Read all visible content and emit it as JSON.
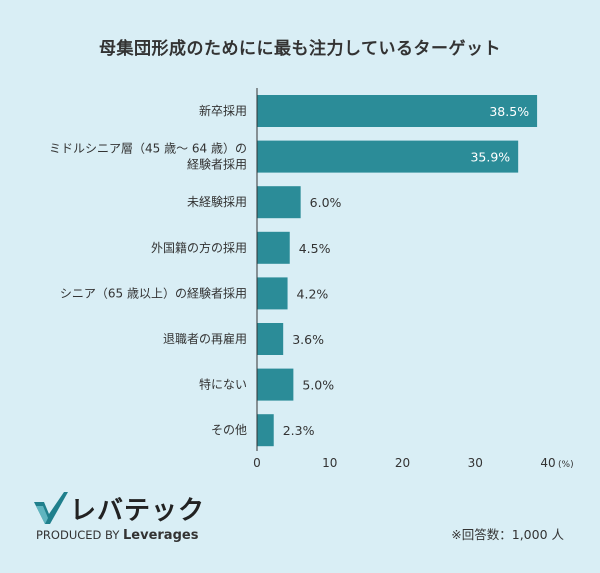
{
  "chart_data": {
    "type": "bar",
    "orientation": "horizontal",
    "title": "母集団形成のためにに最も注力しているターゲット",
    "categories": [
      "新卒採用",
      "ミドルシニア層（45 歳～ 64 歳）の\n経験者採用",
      "未経験採用",
      "外国籍の方の採用",
      "シニア（65 歳以上）の経験者採用",
      "退職者の再雇用",
      "特にない",
      "その他"
    ],
    "values": [
      38.5,
      35.9,
      6.0,
      4.5,
      4.2,
      3.6,
      5.0,
      2.3
    ],
    "value_labels": [
      "38.5%",
      "35.9%",
      "6.0%",
      "4.5%",
      "4.2%",
      "3.6%",
      "5.0%",
      "2.3%"
    ],
    "xlim": [
      0,
      40
    ],
    "xticks": [
      "0",
      "10",
      "20",
      "30",
      "40"
    ],
    "x_unit": "(%)",
    "grid": false,
    "bar_color": "#2b8c98"
  },
  "brand": {
    "logo_text": "レバテック",
    "produced_by": "PRODUCED BY",
    "company": "Leverages"
  },
  "note": "※回答数：1,000 人"
}
